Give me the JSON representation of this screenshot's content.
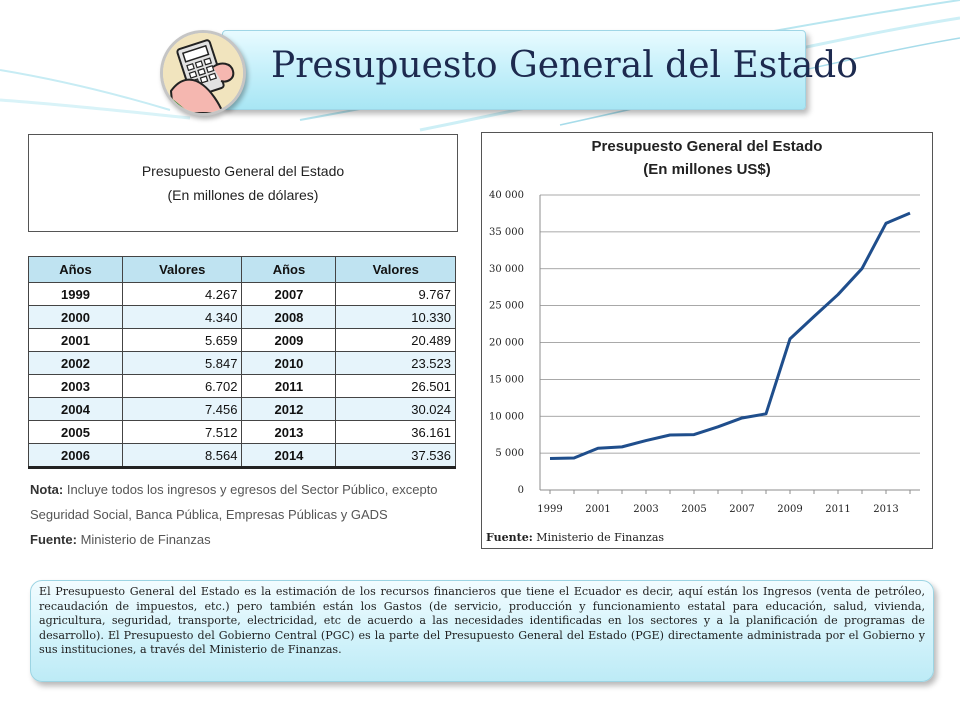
{
  "header": {
    "title": "Presupuesto General del Estado"
  },
  "table_panel": {
    "caption_line1": "Presupuesto General del Estado",
    "caption_line2": "(En millones de dólares)",
    "columns": [
      "Años",
      "Valores",
      "Años",
      "Valores"
    ],
    "rows": [
      {
        "year1": "1999",
        "value1": "4.267",
        "year2": "2007",
        "value2": "9.767"
      },
      {
        "year1": "2000",
        "value1": "4.340",
        "year2": "2008",
        "value2": "10.330"
      },
      {
        "year1": "2001",
        "value1": "5.659",
        "year2": "2009",
        "value2": "20.489"
      },
      {
        "year1": "2002",
        "value1": "5.847",
        "year2": "2010",
        "value2": "23.523"
      },
      {
        "year1": "2003",
        "value1": "6.702",
        "year2": "2011",
        "value2": "26.501"
      },
      {
        "year1": "2004",
        "value1": "7.456",
        "year2": "2012",
        "value2": "30.024"
      },
      {
        "year1": "2005",
        "value1": "7.512",
        "year2": "2013",
        "value2": "36.161"
      },
      {
        "year1": "2006",
        "value1": "8.564",
        "year2": "2014",
        "value2": "37.536"
      }
    ],
    "note_label": "Nota:",
    "note_line1": " Incluye todos los ingresos y egresos del Sector Público, excepto",
    "note_line2": "Seguridad Social, Banca Pública, Empresas Públicas y GADS",
    "source_label": "Fuente:",
    "source_text": " Ministerio de Finanzas"
  },
  "chart_data": {
    "type": "line",
    "title": "Presupuesto General del Estado",
    "subtitle": "(En millones US$)",
    "x": [
      1999,
      2000,
      2001,
      2002,
      2003,
      2004,
      2005,
      2006,
      2007,
      2008,
      2009,
      2010,
      2011,
      2012,
      2013,
      2014
    ],
    "series": [
      {
        "values": [
          4267,
          4340,
          5659,
          5847,
          6702,
          7456,
          7512,
          8564,
          9767,
          10330,
          20489,
          23523,
          26501,
          30024,
          36161,
          37536
        ]
      }
    ],
    "x_tick_labels": [
      "1999",
      "2001",
      "2003",
      "2005",
      "2007",
      "2009",
      "2011",
      "2013"
    ],
    "y_tick_labels": [
      "0",
      "5 000",
      "10 000",
      "15 000",
      "20 000",
      "25 000",
      "30 000",
      "35 000",
      "40 000"
    ],
    "ylim": [
      0,
      40000
    ],
    "grid": true,
    "line_color": "#1f4e8c",
    "source_label": "Fuente:",
    "source_text": " Ministerio de Finanzas"
  },
  "description": {
    "text": "El Presupuesto General del Estado es la estimación de los recursos financieros que tiene el Ecuador es decir, aquí están los Ingresos (venta de petróleo, recaudación de impuestos, etc.) pero también están los Gastos (de servicio, producción y funcionamiento estatal para educación, salud, vivienda, agricultura, seguridad, transporte, electricidad, etc de acuerdo a las necesidades identificadas en los sectores y a la planificación de programas de desarrollo). El Presupuesto del Gobierno Central (PGC) es la parte del Presupuesto General del Estado (PGE) directamente administrada por el Gobierno y sus instituciones, a través del Ministerio de Finanzas."
  },
  "colors": {
    "title_text": "#1d2a4f",
    "table_header": "#bfe3f1",
    "table_alt_row": "#e6f4fb",
    "panel_gradient_light": "#e8fbff",
    "panel_gradient_dark": "#a8e6f4"
  },
  "icons": {
    "logo": "calculator-hand-icon"
  }
}
